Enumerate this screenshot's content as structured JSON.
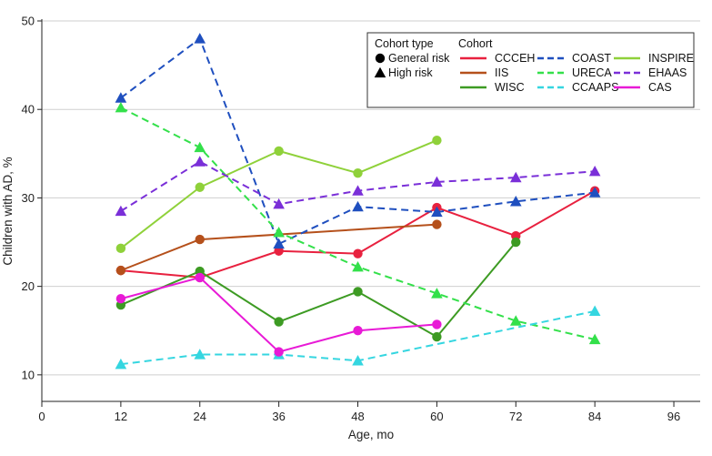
{
  "chart_data": {
    "type": "line",
    "title": "",
    "xlabel": "Age, mo",
    "ylabel": "Children with AD, %",
    "xlim": [
      0,
      100
    ],
    "ylim": [
      7,
      50
    ],
    "xticks": [
      0,
      12,
      24,
      36,
      48,
      60,
      72,
      84,
      96
    ],
    "yticks": [
      10,
      20,
      30,
      40,
      50
    ],
    "grid": "horizontal",
    "legend": {
      "position": "top-right",
      "type_header": "Cohort type",
      "cohort_header": "Cohort",
      "types": [
        {
          "label": "General risk",
          "marker": "circle"
        },
        {
          "label": "High risk",
          "marker": "triangle"
        }
      ]
    },
    "series": [
      {
        "name": "CCCEH",
        "color": "#e8213f",
        "dash": "solid",
        "marker": "circle",
        "x": [
          12,
          24,
          36,
          48,
          60,
          72,
          84
        ],
        "y": [
          21.8,
          21.0,
          24.0,
          23.7,
          28.9,
          25.7,
          30.8
        ]
      },
      {
        "name": "IIS",
        "color": "#b5501b",
        "dash": "solid",
        "marker": "circle",
        "x": [
          12,
          24,
          60
        ],
        "y": [
          21.8,
          25.3,
          27.0
        ]
      },
      {
        "name": "WISC",
        "color": "#3d9b23",
        "dash": "solid",
        "marker": "circle",
        "x": [
          12,
          24,
          36,
          48,
          60,
          72
        ],
        "y": [
          17.9,
          21.7,
          16.0,
          19.4,
          14.3,
          25.0
        ]
      },
      {
        "name": "COAST",
        "color": "#1f4fbf",
        "dash": "dashed",
        "marker": "triangle",
        "x": [
          12,
          24,
          36,
          48,
          60,
          72,
          84
        ],
        "y": [
          41.3,
          48.0,
          24.8,
          29.0,
          28.4,
          29.6,
          30.6
        ]
      },
      {
        "name": "URECA",
        "color": "#33e04a",
        "dash": "dashed",
        "marker": "triangle",
        "x": [
          12,
          24,
          36,
          48,
          60,
          72,
          84
        ],
        "y": [
          40.2,
          35.7,
          26.1,
          22.2,
          19.2,
          16.1,
          14.0
        ]
      },
      {
        "name": "CCAAPS",
        "color": "#35d6e0",
        "dash": "dashed",
        "marker": "triangle",
        "x": [
          12,
          24,
          36,
          48,
          84
        ],
        "y": [
          11.2,
          12.3,
          12.3,
          11.6,
          17.2
        ]
      },
      {
        "name": "INSPIRE",
        "color": "#8fd13a",
        "dash": "solid",
        "marker": "circle",
        "x": [
          12,
          24,
          36,
          48,
          60
        ],
        "y": [
          24.3,
          31.2,
          35.3,
          32.8,
          36.5
        ]
      },
      {
        "name": "EHAAS",
        "color": "#7a2fd8",
        "dash": "dashed",
        "marker": "triangle",
        "x": [
          12,
          24,
          36,
          48,
          60,
          72,
          84
        ],
        "y": [
          28.5,
          34.1,
          29.3,
          30.8,
          31.8,
          32.3,
          33.0
        ]
      },
      {
        "name": "CAS",
        "color": "#e81ad6",
        "dash": "solid",
        "marker": "circle",
        "x": [
          12,
          24,
          36,
          48,
          60
        ],
        "y": [
          18.6,
          21.0,
          12.6,
          15.0,
          15.7
        ]
      }
    ]
  }
}
